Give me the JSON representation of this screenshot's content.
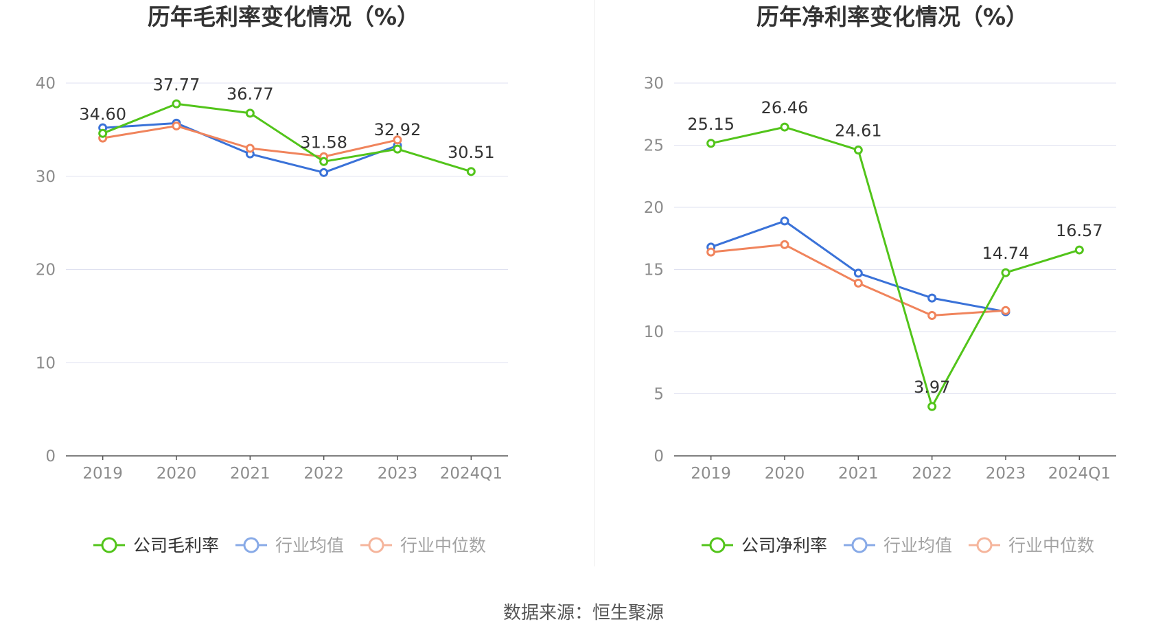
{
  "colors": {
    "company": "#52c41a",
    "industry_avg": "#3a72d8",
    "industry_median": "#f0845c",
    "grid": "#dfe1f0",
    "axis_text": "#8c8c8c",
    "title_text": "#333333"
  },
  "source": "数据来源：恒生聚源",
  "chart_data": [
    {
      "type": "line",
      "title": "历年毛利率变化情况（%）",
      "categories": [
        "2019",
        "2020",
        "2021",
        "2022",
        "2023",
        "2024Q1"
      ],
      "ylim": [
        0,
        40
      ],
      "yticks": [
        0,
        10,
        20,
        30,
        40
      ],
      "grid": true,
      "legend_position": "bottom",
      "series": [
        {
          "key": "company",
          "name": "公司毛利率",
          "values": [
            34.6,
            37.77,
            36.77,
            31.58,
            32.92,
            30.51
          ],
          "labels": [
            "34.60",
            "37.77",
            "36.77",
            "31.58",
            "32.92",
            "30.51"
          ]
        },
        {
          "key": "industry_avg",
          "name": "行业均值",
          "values": [
            35.2,
            35.7,
            32.4,
            30.4,
            33.3,
            null
          ]
        },
        {
          "key": "industry_median",
          "name": "行业中位数",
          "values": [
            34.1,
            35.4,
            33.0,
            32.1,
            33.9,
            null
          ]
        }
      ]
    },
    {
      "type": "line",
      "title": "历年净利率变化情况（%）",
      "categories": [
        "2019",
        "2020",
        "2021",
        "2022",
        "2023",
        "2024Q1"
      ],
      "ylim": [
        0,
        30
      ],
      "yticks": [
        0,
        5,
        10,
        15,
        20,
        25,
        30
      ],
      "grid": true,
      "legend_position": "bottom",
      "series": [
        {
          "key": "company",
          "name": "公司净利率",
          "values": [
            25.15,
            26.46,
            24.61,
            3.97,
            14.74,
            16.57
          ],
          "labels": [
            "25.15",
            "26.46",
            "24.61",
            "3.97",
            "14.74",
            "16.57"
          ]
        },
        {
          "key": "industry_avg",
          "name": "行业均值",
          "values": [
            16.8,
            18.9,
            14.7,
            12.7,
            11.6,
            null
          ]
        },
        {
          "key": "industry_median",
          "name": "行业中位数",
          "values": [
            16.4,
            17.0,
            13.9,
            11.3,
            11.7,
            null
          ]
        }
      ]
    }
  ]
}
